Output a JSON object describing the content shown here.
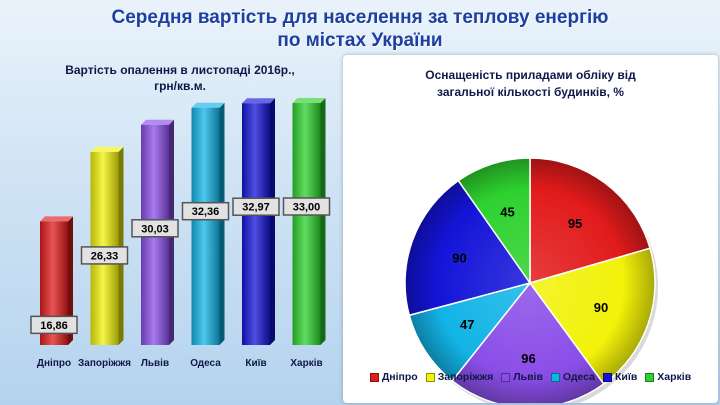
{
  "header": {
    "title_line1": "Середня вартість для населення за теплову енергію",
    "title_line2": "по містах України"
  },
  "chart_data": [
    {
      "type": "bar",
      "title_line1": "Вартість опалення в листопаді 2016р.,",
      "title_line2": "грн/кв.м.",
      "categories": [
        "Дніпро",
        "Запоріжжя",
        "Львів",
        "Одеса",
        "Київ",
        "Харків"
      ],
      "values": [
        16.86,
        26.33,
        30.03,
        32.36,
        32.97,
        33.0
      ],
      "value_labels": [
        "16,86",
        "26,33",
        "30,03",
        "32,36",
        "32,97",
        "33,00"
      ],
      "colors": [
        "#e21b1b",
        "#f2f20a",
        "#8a4ee8",
        "#12b4e6",
        "#1414d8",
        "#2ed12e"
      ]
    },
    {
      "type": "pie",
      "title_line1": "Оснащеність приладами обліку від",
      "title_line2": "загальної кількості будинків, %",
      "categories": [
        "Дніпро",
        "Запоріжжя",
        "Львів",
        "Одеса",
        "Київ",
        "Харків"
      ],
      "values": [
        95,
        90,
        96,
        47,
        90,
        45
      ],
      "colors": [
        "#e21b1b",
        "#f2f20a",
        "#8a4ee8",
        "#12b4e6",
        "#1414d8",
        "#2ed12e"
      ],
      "legend_position": "bottom"
    }
  ]
}
